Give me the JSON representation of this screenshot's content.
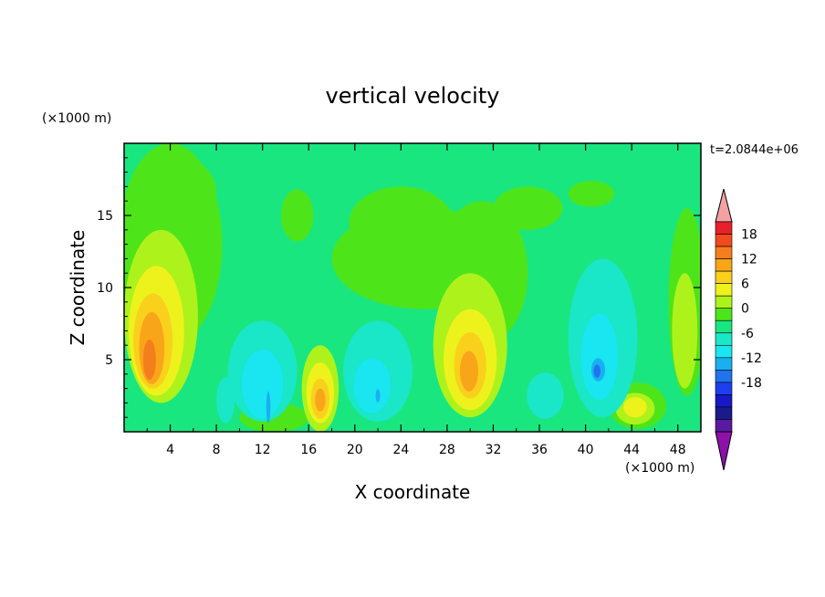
{
  "chart_data": {
    "type": "heatmap",
    "title": "vertical velocity",
    "xlabel": "X coordinate",
    "ylabel": "Z coordinate",
    "x_unit": "(×1000 m)",
    "y_unit": "(×1000 m)",
    "time_label": "t=2.0844e+06",
    "xlim": [
      0,
      50
    ],
    "ylim": [
      0,
      20
    ],
    "x_ticks": [
      "4",
      "8",
      "12",
      "16",
      "20",
      "24",
      "28",
      "32",
      "36",
      "40",
      "44",
      "48"
    ],
    "y_ticks": [
      "5",
      "10",
      "15"
    ],
    "grid": false,
    "colorbar": {
      "labels": [
        "18",
        "12",
        "6",
        "0",
        "-6",
        "-12",
        "-18"
      ],
      "levels": [
        18,
        15,
        12,
        9,
        6,
        3,
        0,
        -3,
        -6,
        -9,
        -12,
        -15,
        -18
      ],
      "colors": [
        "#f4a1a3",
        "#e8202a",
        "#f04a1e",
        "#f57e1c",
        "#f9a51a",
        "#f9d11c",
        "#eef21c",
        "#aef21c",
        "#4ee41a",
        "#1ae680",
        "#1ae6c8",
        "#19e6f0",
        "#19b0f0",
        "#1f74ee",
        "#1f3eee",
        "#1818c8",
        "#1a1a8c",
        "#5a1aa0",
        "#8c11a8"
      ]
    },
    "background_value": 0,
    "features": [
      {
        "kind": "updraft",
        "x": 2.5,
        "z": 5.5,
        "peak": 10
      },
      {
        "kind": "updraft",
        "x": 17,
        "z": 2.5,
        "peak": 6
      },
      {
        "kind": "updraft",
        "x": 30,
        "z": 4.5,
        "peak": 7
      },
      {
        "kind": "updraft",
        "x": 47,
        "z": 6.5,
        "peak": 3
      },
      {
        "kind": "downdraft",
        "x": 41,
        "z": 4.5,
        "peak": -8
      },
      {
        "kind": "downdraft",
        "x": 12.5,
        "z": 2,
        "peak": -6
      },
      {
        "kind": "downdraft",
        "x": 22,
        "z": 3,
        "peak": -5
      }
    ]
  }
}
